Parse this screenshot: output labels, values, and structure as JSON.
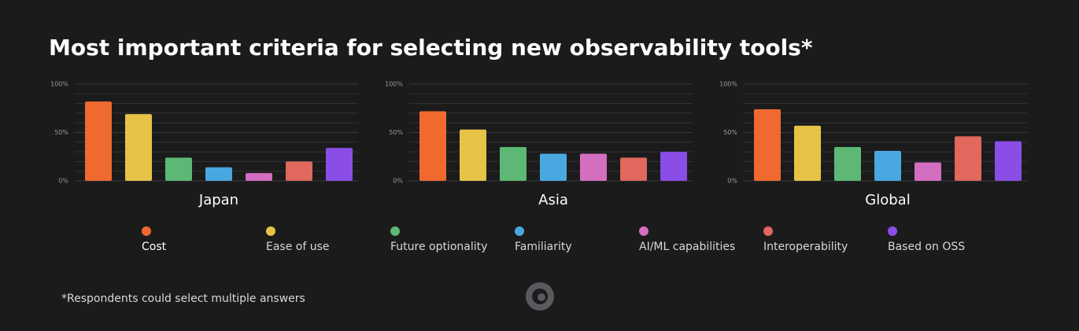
{
  "title": "Most important criteria for selecting new observability tools*",
  "footnote": "*Respondents could select multiple answers",
  "chart_data": [
    {
      "type": "bar",
      "title": "Japan",
      "categories": [
        "Cost",
        "Ease of use",
        "Future optionality",
        "Familiarity",
        "AI/ML capabilities",
        "Interoperability",
        "Based on OSS"
      ],
      "values": [
        82,
        69,
        24,
        14,
        8,
        20,
        34
      ],
      "colors": [
        "#f06a2f",
        "#e6c347",
        "#5cb874",
        "#4aa8e0",
        "#d46ec0",
        "#e0685c",
        "#8a4ee6"
      ],
      "ylim": [
        0,
        100
      ],
      "yticks": [
        {
          "value": 0,
          "label": "0%"
        },
        {
          "value": 50,
          "label": "50%"
        },
        {
          "value": 100,
          "label": "100%"
        }
      ],
      "minor_yticks": [
        10,
        20,
        30,
        40,
        60,
        70,
        80,
        90
      ]
    },
    {
      "type": "bar",
      "title": "Asia",
      "categories": [
        "Cost",
        "Ease of use",
        "Future optionality",
        "Familiarity",
        "AI/ML capabilities",
        "Interoperability",
        "Based on OSS"
      ],
      "values": [
        72,
        53,
        35,
        28,
        28,
        24,
        30
      ],
      "colors": [
        "#f06a2f",
        "#e6c347",
        "#5cb874",
        "#4aa8e0",
        "#d46ec0",
        "#e0685c",
        "#8a4ee6"
      ],
      "ylim": [
        0,
        100
      ],
      "yticks": [
        {
          "value": 0,
          "label": "0%"
        },
        {
          "value": 50,
          "label": "50%"
        },
        {
          "value": 100,
          "label": "100%"
        }
      ],
      "minor_yticks": [
        10,
        20,
        30,
        40,
        60,
        70,
        80,
        90
      ]
    },
    {
      "type": "bar",
      "title": "Global",
      "categories": [
        "Cost",
        "Ease of use",
        "Future optionality",
        "Familiarity",
        "AI/ML capabilities",
        "Interoperability",
        "Based on OSS"
      ],
      "values": [
        74,
        57,
        35,
        31,
        19,
        46,
        41
      ],
      "colors": [
        "#f06a2f",
        "#e6c347",
        "#5cb874",
        "#4aa8e0",
        "#d46ec0",
        "#e0685c",
        "#8a4ee6"
      ],
      "ylim": [
        0,
        100
      ],
      "yticks": [
        {
          "value": 0,
          "label": "0%"
        },
        {
          "value": 50,
          "label": "50%"
        },
        {
          "value": 100,
          "label": "100%"
        }
      ],
      "minor_yticks": [
        10,
        20,
        30,
        40,
        60,
        70,
        80,
        90
      ]
    }
  ]
}
